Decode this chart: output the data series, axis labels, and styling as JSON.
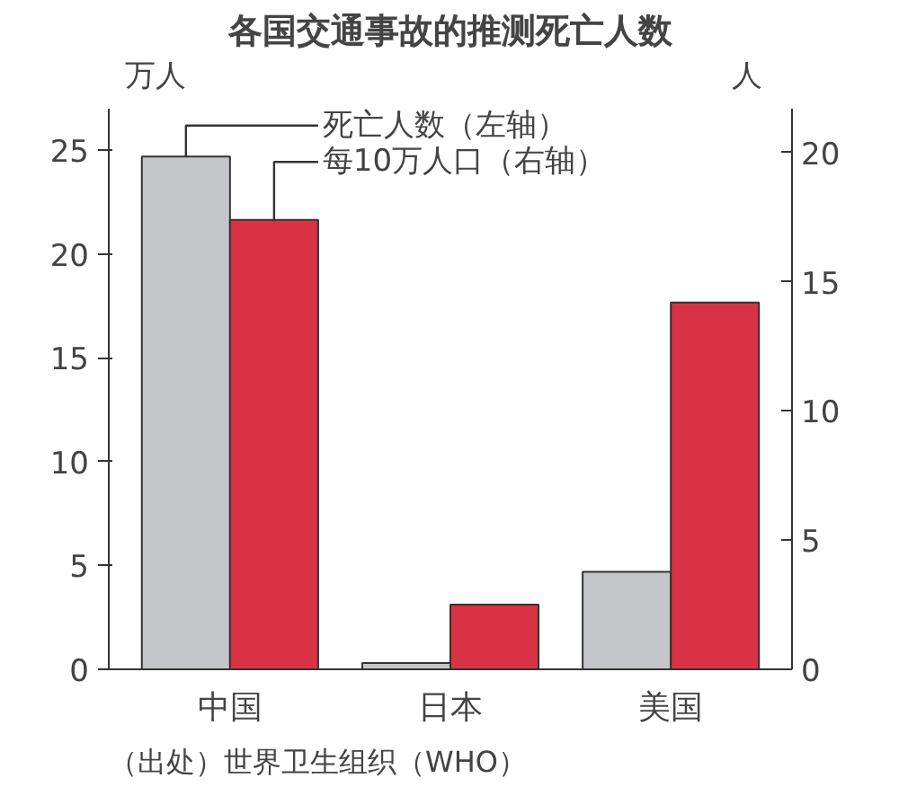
{
  "chart_data": {
    "type": "bar",
    "title": "各国交通事故的推测死亡人数",
    "ylabel": "万人",
    "y2label": "人",
    "categories": [
      "中国",
      "日本",
      "美国"
    ],
    "series": [
      {
        "name": "死亡人数（左轴）",
        "color": "#c4c6ca",
        "values": [
          24.7,
          0.3,
          4.7
        ]
      },
      {
        "name": "每10万人口（右轴）",
        "color": "#d93244",
        "values": [
          17.4,
          2.5,
          14.2
        ],
        "axis": "y2"
      }
    ],
    "ylim": [
      0,
      27
    ],
    "yticks": [
      0,
      5,
      10,
      15,
      20,
      25
    ],
    "y2lim": [
      0,
      21.7
    ],
    "y2ticks": [
      0,
      5,
      10,
      15,
      20
    ],
    "grid": false,
    "annotations": [
      "（出处）世界卫生组织（WHO）"
    ]
  }
}
